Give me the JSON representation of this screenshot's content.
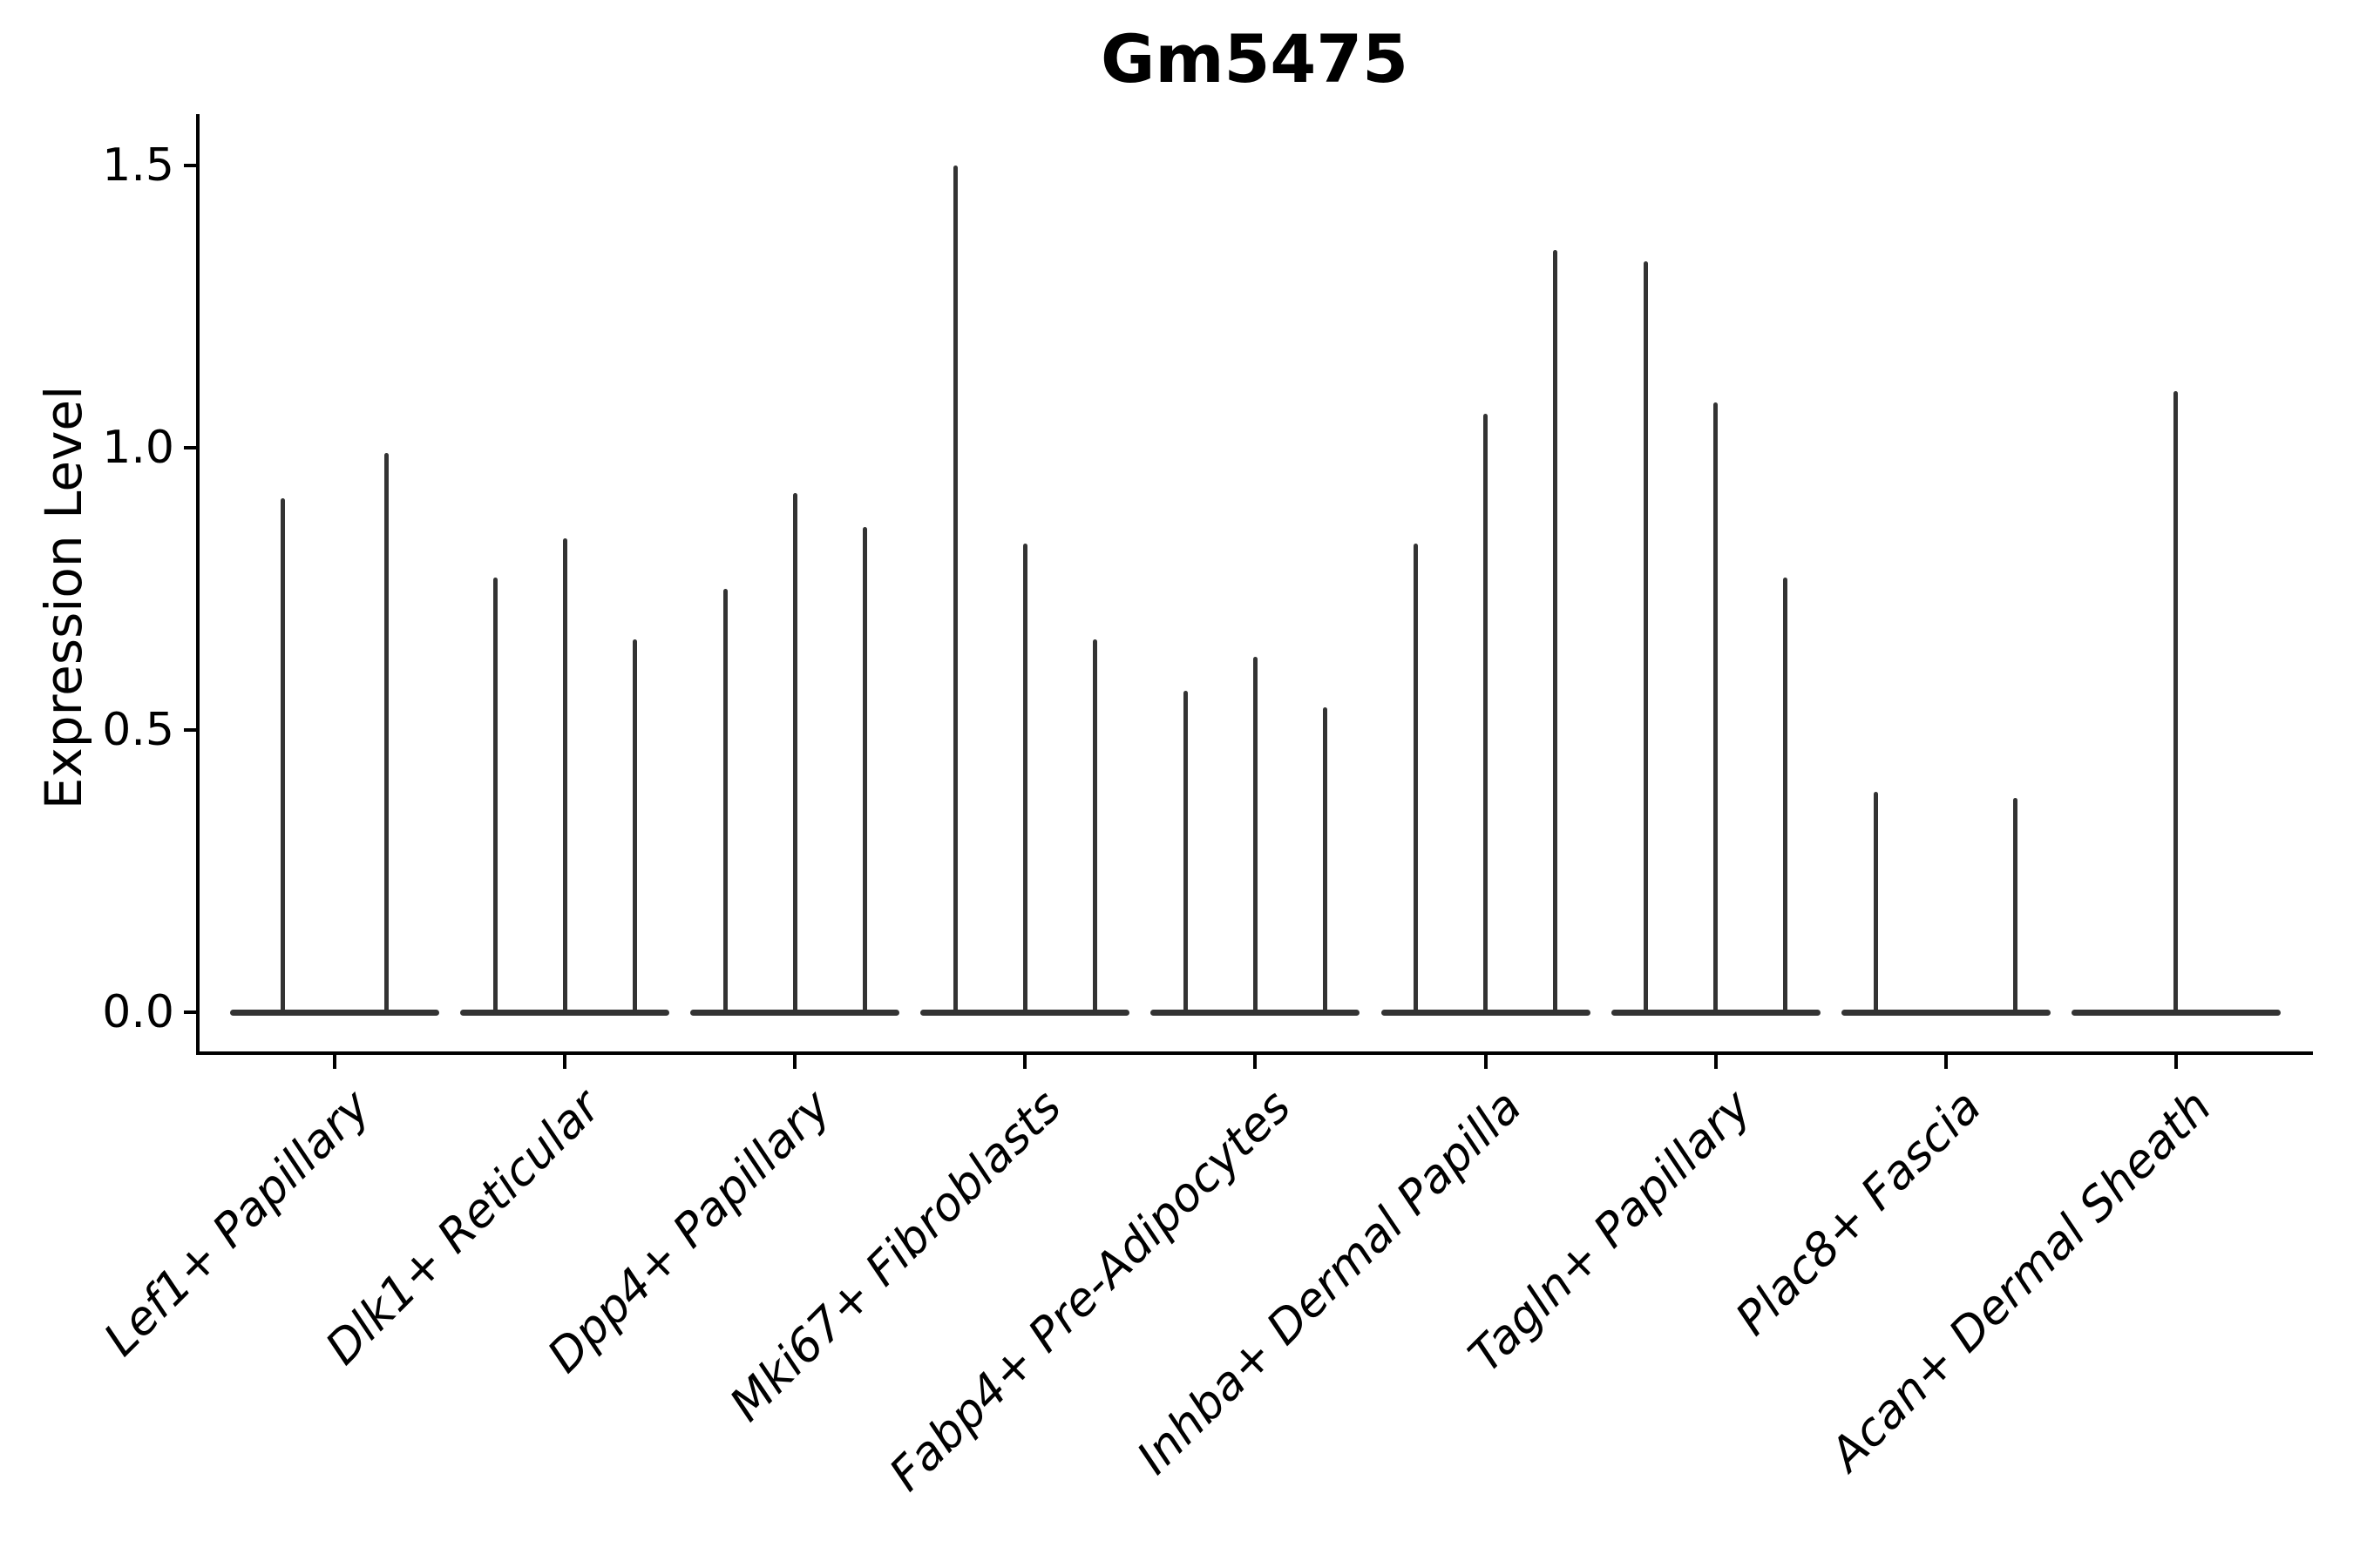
{
  "figure": {
    "title": "Gm5475",
    "y_axis": {
      "label": "Expression Level",
      "tick_labels": [
        "0.0",
        "0.5",
        "1.0",
        "1.5"
      ]
    },
    "x_axis": {
      "label": ""
    }
  },
  "chart_data": {
    "type": "violin",
    "title": "Gm5475",
    "xlabel": "",
    "ylabel": "Expression Level",
    "ylim": [
      0,
      1.5
    ],
    "yticks": [
      0,
      0.5,
      1,
      1.5
    ],
    "ytick_labels": [
      "0.0",
      "0.5",
      "1.0",
      "1.5"
    ],
    "grid": false,
    "legend_position": "none",
    "x_tick_label_rotation_deg": 45,
    "x_tick_label_style": "italic",
    "categories": [
      "Lef1+ Papillary",
      "Dlk1+ Reticular",
      "Dpp4+ Papillary",
      "Mki67+ Fibroblasts",
      "Fabp4+ Pre-Adipocytes",
      "Inhba+ Dermal Papilla",
      "Tagln+ Papillary",
      "Plac8+ Fascia",
      "Acan+ Dermal Sheath"
    ],
    "violins": [
      {
        "category": "Lef1+ Papillary",
        "spikes": [
          {
            "offset": -0.227,
            "peak": 0.91
          },
          {
            "offset": 0.227,
            "peak": 0.99
          }
        ]
      },
      {
        "category": "Dlk1+ Reticular",
        "spikes": [
          {
            "offset": -0.303,
            "peak": 0.77
          },
          {
            "offset": 0,
            "peak": 0.84
          },
          {
            "offset": 0.303,
            "peak": 0.66
          }
        ]
      },
      {
        "category": "Dpp4+ Papillary",
        "spikes": [
          {
            "offset": -0.303,
            "peak": 0.75
          },
          {
            "offset": 0,
            "peak": 0.92
          },
          {
            "offset": 0.303,
            "peak": 0.86
          }
        ]
      },
      {
        "category": "Mki67+ Fibroblasts",
        "spikes": [
          {
            "offset": -0.303,
            "peak": 1.5
          },
          {
            "offset": 0,
            "peak": 0.83
          },
          {
            "offset": 0.303,
            "peak": 0.66
          }
        ]
      },
      {
        "category": "Fabp4+ Pre-Adipocytes",
        "spikes": [
          {
            "offset": -0.303,
            "peak": 0.57
          },
          {
            "offset": 0,
            "peak": 0.63
          },
          {
            "offset": 0.303,
            "peak": 0.54
          }
        ]
      },
      {
        "category": "Inhba+ Dermal Papilla",
        "spikes": [
          {
            "offset": -0.303,
            "peak": 0.83
          },
          {
            "offset": 0,
            "peak": 1.06
          },
          {
            "offset": 0.303,
            "peak": 1.35
          }
        ]
      },
      {
        "category": "Tagln+ Papillary",
        "spikes": [
          {
            "offset": -0.303,
            "peak": 1.33
          },
          {
            "offset": 0,
            "peak": 1.08
          },
          {
            "offset": 0.303,
            "peak": 0.77
          }
        ]
      },
      {
        "category": "Plac8+ Fascia",
        "spikes": [
          {
            "offset": -0.303,
            "peak": 0.39
          },
          {
            "offset": 0.303,
            "peak": 0.38
          }
        ]
      },
      {
        "category": "Acan+ Dermal Sheath",
        "spikes": [
          {
            "offset": 0,
            "peak": 1.1
          }
        ]
      }
    ],
    "colors": {
      "violin": "#333333",
      "axis": "#000000",
      "text": "#000000",
      "background": "#ffffff"
    }
  }
}
